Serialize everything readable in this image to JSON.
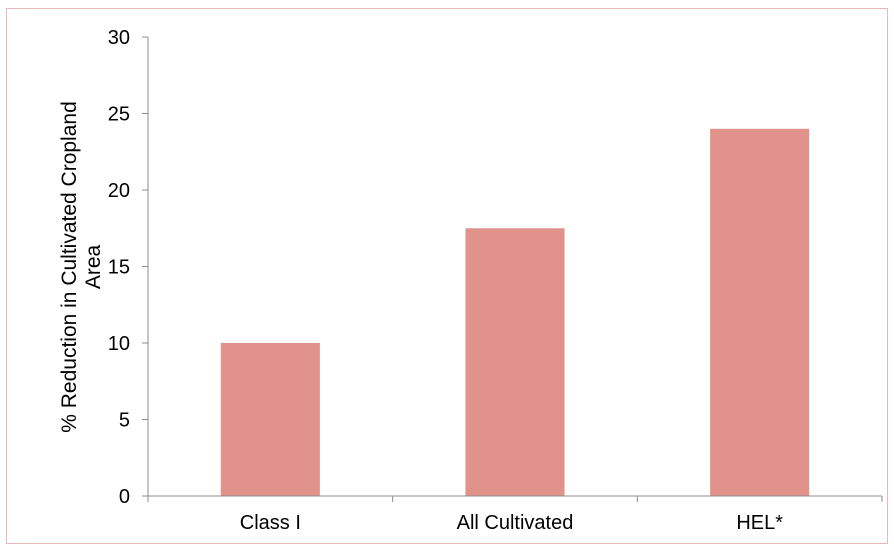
{
  "chart_data": {
    "type": "bar",
    "title": "",
    "xlabel": "",
    "ylabel_lines": [
      "% Reduction in Cultivated Cropland",
      "Area"
    ],
    "categories": [
      "Class I",
      "All Cultivated",
      "HEL*"
    ],
    "values": [
      10,
      17.5,
      24
    ],
    "ylim": [
      0,
      30
    ],
    "yticks": [
      0,
      5,
      10,
      15,
      20,
      25,
      30
    ],
    "grid": false,
    "legend": "none",
    "bar_color": "#e0928b",
    "axis_color": "#8c8c8c"
  }
}
